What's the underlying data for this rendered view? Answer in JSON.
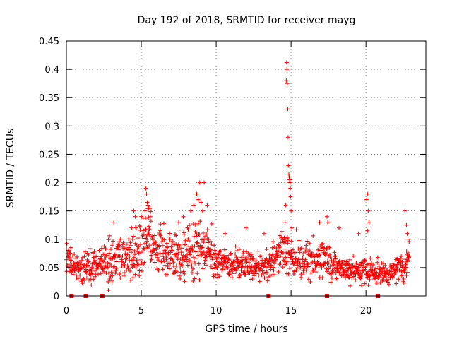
{
  "chart_data": {
    "type": "scatter",
    "title": "Day 192 of 2018, SRMTID for receiver mayg",
    "xlabel": "GPS time / hours",
    "ylabel": "SRMTID / TECUs",
    "xlim": [
      0,
      24
    ],
    "ylim": [
      0,
      0.45
    ],
    "x_ticks": [
      0,
      5,
      10,
      15,
      20
    ],
    "x_tick_labels": [
      "0",
      "5",
      "10",
      "15",
      "20"
    ],
    "y_ticks": [
      0,
      0.05,
      0.1,
      0.15,
      0.2,
      0.25,
      0.3,
      0.35,
      0.4,
      0.45
    ],
    "y_tick_labels": [
      "0",
      "0.05",
      "0.1",
      "0.15",
      "0.2",
      "0.25",
      "0.3",
      "0.35",
      "0.4",
      "0.45"
    ],
    "grid": true,
    "marker": "+",
    "series_color": "#ff0000",
    "envelope_hours": [
      0,
      0.5,
      1,
      1.5,
      2,
      2.5,
      3,
      3.5,
      4,
      4.5,
      5,
      5.4,
      5.8,
      6.5,
      7,
      7.5,
      8,
      8.5,
      9,
      9.5,
      10,
      10.5,
      11,
      11.5,
      12,
      12.5,
      13,
      13.5,
      14,
      14.5,
      15,
      15.5,
      16,
      16.5,
      17,
      17.5,
      18,
      18.5,
      19,
      19.5,
      20,
      20.5,
      21,
      21.5,
      22,
      22.5,
      22.9
    ],
    "envelope_median": [
      0.065,
      0.05,
      0.045,
      0.05,
      0.055,
      0.06,
      0.065,
      0.065,
      0.065,
      0.07,
      0.08,
      0.1,
      0.085,
      0.075,
      0.075,
      0.07,
      0.075,
      0.08,
      0.085,
      0.085,
      0.06,
      0.055,
      0.055,
      0.055,
      0.055,
      0.05,
      0.045,
      0.055,
      0.07,
      0.08,
      0.065,
      0.065,
      0.06,
      0.055,
      0.07,
      0.065,
      0.05,
      0.05,
      0.045,
      0.045,
      0.045,
      0.04,
      0.04,
      0.04,
      0.045,
      0.05,
      0.07
    ],
    "envelope_spread": [
      0.02,
      0.018,
      0.02,
      0.025,
      0.025,
      0.025,
      0.03,
      0.03,
      0.03,
      0.035,
      0.04,
      0.045,
      0.035,
      0.03,
      0.03,
      0.03,
      0.035,
      0.04,
      0.04,
      0.035,
      0.02,
      0.02,
      0.02,
      0.02,
      0.02,
      0.02,
      0.02,
      0.02,
      0.025,
      0.03,
      0.025,
      0.025,
      0.025,
      0.025,
      0.03,
      0.025,
      0.02,
      0.02,
      0.018,
      0.018,
      0.02,
      0.016,
      0.016,
      0.016,
      0.018,
      0.02,
      0.025
    ],
    "peak_points": [
      [
        14.7,
        0.412
      ],
      [
        14.72,
        0.4
      ],
      [
        14.68,
        0.38
      ],
      [
        14.75,
        0.375
      ],
      [
        14.78,
        0.33
      ],
      [
        14.8,
        0.28
      ],
      [
        14.82,
        0.23
      ],
      [
        14.85,
        0.215
      ],
      [
        14.88,
        0.21
      ],
      [
        14.9,
        0.205
      ],
      [
        14.92,
        0.2
      ],
      [
        14.95,
        0.19
      ],
      [
        14.97,
        0.175
      ],
      [
        14.65,
        0.16
      ],
      [
        15.0,
        0.15
      ],
      [
        14.6,
        0.13
      ],
      [
        15.05,
        0.12
      ],
      [
        5.3,
        0.19
      ],
      [
        5.35,
        0.18
      ],
      [
        5.4,
        0.165
      ],
      [
        5.45,
        0.16
      ],
      [
        5.5,
        0.155
      ],
      [
        5.25,
        0.15
      ],
      [
        5.6,
        0.14
      ],
      [
        4.5,
        0.15
      ],
      [
        4.6,
        0.14
      ],
      [
        8.9,
        0.2
      ],
      [
        9.2,
        0.2
      ],
      [
        8.7,
        0.18
      ],
      [
        8.8,
        0.17
      ],
      [
        9.0,
        0.165
      ],
      [
        9.4,
        0.16
      ],
      [
        9.1,
        0.15
      ],
      [
        8.5,
        0.16
      ],
      [
        8.3,
        0.15
      ],
      [
        7.5,
        0.13
      ],
      [
        7.8,
        0.14
      ],
      [
        20.1,
        0.18
      ],
      [
        20.05,
        0.17
      ],
      [
        20.15,
        0.15
      ],
      [
        20.2,
        0.13
      ],
      [
        20.1,
        0.115
      ],
      [
        22.6,
        0.15
      ],
      [
        22.7,
        0.125
      ],
      [
        22.75,
        0.11
      ],
      [
        22.8,
        0.1
      ],
      [
        17.4,
        0.14
      ],
      [
        17.45,
        0.13
      ],
      [
        16.9,
        0.13
      ],
      [
        18.2,
        0.12
      ],
      [
        19.5,
        0.11
      ],
      [
        13.2,
        0.11
      ],
      [
        12.0,
        0.12
      ],
      [
        10.6,
        0.11
      ],
      [
        2.8,
        0.01
      ],
      [
        7.6,
        0.03
      ]
    ],
    "gap_markers_hours": [
      0.35,
      1.3,
      2.4,
      13.5,
      17.4,
      20.8
    ]
  }
}
